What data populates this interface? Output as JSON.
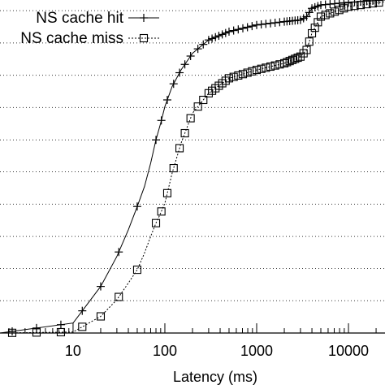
{
  "chart_data": {
    "type": "line",
    "title": "",
    "xlabel": "Latency (ms)",
    "ylabel": "",
    "xscale": "log",
    "xlim": [
      1.6,
      25000
    ],
    "ylim": [
      0,
      1
    ],
    "grid": "horizontal-dotted",
    "legend_position": "top-left",
    "x_ticks": [
      {
        "value": 10,
        "label": "10"
      },
      {
        "value": 100,
        "label": "100"
      },
      {
        "value": 1000,
        "label": "1000"
      },
      {
        "value": 10000,
        "label": "10000"
      }
    ],
    "y_gridlines": [
      0.097,
      0.194,
      0.29,
      0.387,
      0.484,
      0.58,
      0.677,
      0.774,
      0.871,
      0.968
    ],
    "series": [
      {
        "name": "NS cache hit",
        "marker": "plus",
        "color": "#000000",
        "points": [
          [
            1.6,
            0.0
          ],
          [
            10,
            0.03
          ],
          [
            20,
            0.14
          ],
          [
            30,
            0.23
          ],
          [
            40,
            0.31
          ],
          [
            50,
            0.38
          ],
          [
            60,
            0.44
          ],
          [
            70,
            0.51
          ],
          [
            80,
            0.58
          ],
          [
            90,
            0.63
          ],
          [
            100,
            0.68
          ],
          [
            120,
            0.74
          ],
          [
            150,
            0.79
          ],
          [
            200,
            0.84
          ],
          [
            300,
            0.88
          ],
          [
            500,
            0.905
          ],
          [
            1000,
            0.925
          ],
          [
            2000,
            0.935
          ],
          [
            3000,
            0.94
          ],
          [
            3500,
            0.95
          ],
          [
            4000,
            0.975
          ],
          [
            5000,
            0.985
          ],
          [
            10000,
            0.993
          ],
          [
            25000,
            1.0
          ]
        ]
      },
      {
        "name": "NS cache miss",
        "marker": "square",
        "color": "#000000",
        "points": [
          [
            1.6,
            0.0
          ],
          [
            10,
            0.003
          ],
          [
            20,
            0.05
          ],
          [
            30,
            0.1
          ],
          [
            40,
            0.15
          ],
          [
            50,
            0.19
          ],
          [
            60,
            0.24
          ],
          [
            70,
            0.29
          ],
          [
            80,
            0.33
          ],
          [
            90,
            0.36
          ],
          [
            100,
            0.39
          ],
          [
            120,
            0.48
          ],
          [
            150,
            0.57
          ],
          [
            200,
            0.66
          ],
          [
            300,
            0.72
          ],
          [
            500,
            0.765
          ],
          [
            1000,
            0.79
          ],
          [
            2000,
            0.81
          ],
          [
            3000,
            0.83
          ],
          [
            3500,
            0.85
          ],
          [
            4000,
            0.9
          ],
          [
            5000,
            0.95
          ],
          [
            10000,
            0.98
          ],
          [
            25000,
            0.995
          ]
        ]
      }
    ]
  }
}
